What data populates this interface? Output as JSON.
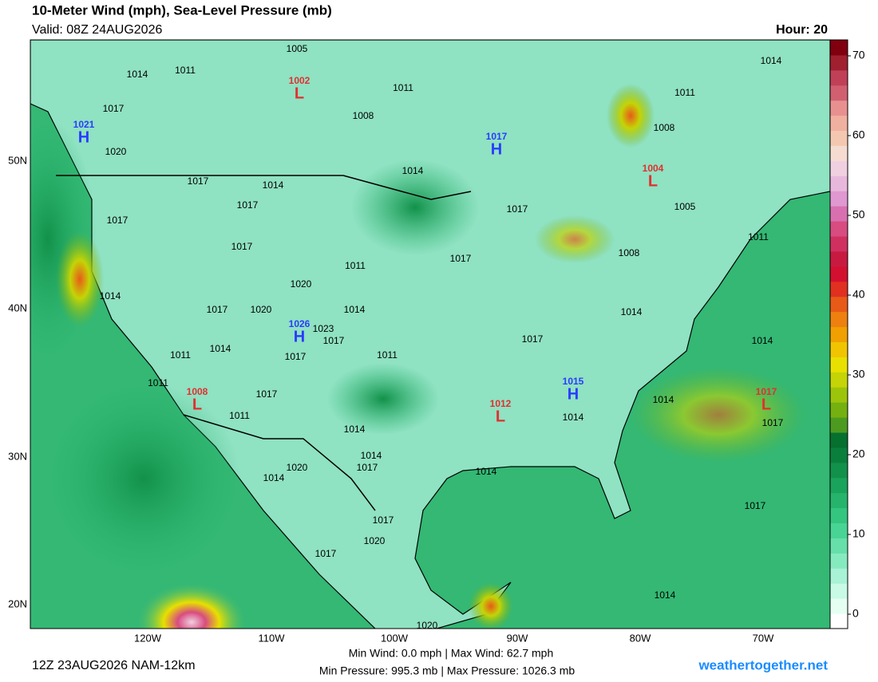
{
  "header": {
    "title": "10-Meter Wind (mph), Sea-Level Pressure (mb)",
    "valid": "Valid: 08Z 24AUG2026",
    "hour": "Hour: 20"
  },
  "map": {
    "lat_labels": [
      "50N",
      "40N",
      "30N",
      "20N"
    ],
    "lon_labels": [
      "120W",
      "110W",
      "100W",
      "90W",
      "80W",
      "70W"
    ],
    "pressure_centers": [
      {
        "type": "H",
        "value": 1021,
        "color": "#2a3cff"
      },
      {
        "type": "L",
        "value": 1002,
        "color": "#e03030"
      },
      {
        "type": "H",
        "value": 1017,
        "color": "#2a3cff"
      },
      {
        "type": "L",
        "value": 1004,
        "color": "#e03030"
      },
      {
        "type": "H",
        "value": 1026,
        "color": "#2a3cff"
      },
      {
        "type": "L",
        "value": 1008,
        "color": "#e03030"
      },
      {
        "type": "L",
        "value": 1012,
        "color": "#e03030"
      },
      {
        "type": "H",
        "value": 1015,
        "color": "#2a3cff"
      },
      {
        "type": "L",
        "value": 1017,
        "color": "#e03030"
      }
    ],
    "isobar_labels": [
      1005,
      1014,
      1011,
      1011,
      1008,
      1017,
      1020,
      1014,
      1011,
      1008,
      1014,
      1017,
      1014,
      1017,
      1017,
      1017,
      1005,
      1017,
      1011,
      1017,
      1011,
      1008,
      1020,
      1014,
      1017,
      1020,
      1014,
      1023,
      1017,
      1014,
      1017,
      1014,
      1011,
      1014,
      1017,
      1011,
      1011,
      1017,
      1014,
      1011,
      1014,
      1017,
      1014,
      1014,
      1017,
      1020,
      1014,
      1014,
      1017,
      1017,
      1020,
      1017,
      1014,
      1020
    ]
  },
  "colorbar": {
    "lim": [
      -1.8,
      72
    ],
    "ticks": [
      0,
      10,
      20,
      30,
      40,
      50,
      60,
      70
    ],
    "colors": [
      "#ffffff",
      "#e6fff3",
      "#c8fae6",
      "#a8f2d6",
      "#86eabf",
      "#66dfaa",
      "#48d494",
      "#34c57f",
      "#26b46c",
      "#1aa35a",
      "#12914a",
      "#0a7f3c",
      "#06702f",
      "#4c9a20",
      "#74b010",
      "#9cc40a",
      "#c4d406",
      "#e8e000",
      "#f0c400",
      "#f0a000",
      "#ee8010",
      "#e85a18",
      "#e03020",
      "#d41030",
      "#c81a40",
      "#d03060",
      "#d84c80",
      "#d870b0",
      "#e098d0",
      "#e8b8dc",
      "#f0d0e0",
      "#f6dcd0",
      "#f4c8b0",
      "#f0b0a0",
      "#e89090",
      "#d06070",
      "#c04058",
      "#a02030",
      "#800010"
    ]
  },
  "footer": {
    "run": "12Z 23AUG2026 NAM-12km",
    "wind": "Min Wind:  0.0 mph | Max Wind: 62.7 mph",
    "pressure": "Min Pressure: 995.3 mb | Max Pressure: 1026.3 mb",
    "site": "weathertogether.net"
  }
}
